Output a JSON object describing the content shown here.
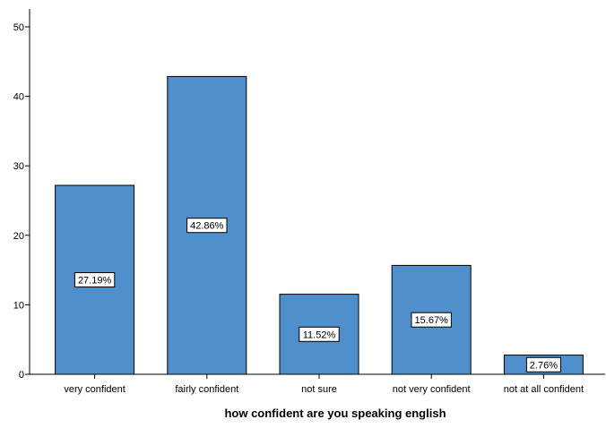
{
  "chart_data": {
    "type": "bar",
    "categories": [
      "very confident",
      "fairly confident",
      "not sure",
      "not very confident",
      "not at all confident"
    ],
    "values": [
      27.19,
      42.86,
      11.52,
      15.67,
      2.76
    ],
    "data_labels": [
      "27.19%",
      "42.86%",
      "11.52%",
      "15.67%",
      "2.76%"
    ],
    "yticks": [
      0,
      10,
      20,
      30,
      40,
      50
    ],
    "ylim": [
      0,
      52
    ],
    "xlabel": "how confident are you speaking english",
    "ylabel": "",
    "title": "",
    "grid": false,
    "bar_color": "#4f8fcc",
    "bar_edge_color": "#000000"
  }
}
